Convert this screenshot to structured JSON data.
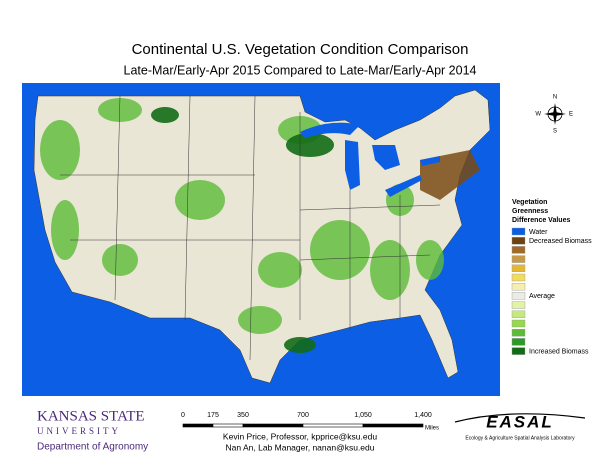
{
  "header": {
    "title": "Continental U.S. Vegetation Condition Comparison",
    "subtitle": "Late-Mar/Early-Apr 2015 Compared to Late-Mar/Early-Apr 2014"
  },
  "compass": {
    "n": "N",
    "s": "S",
    "e": "E",
    "w": "W"
  },
  "legend": {
    "title": [
      "Vegetation",
      "Greenness",
      "Difference Values"
    ],
    "items": [
      {
        "color": "#0a5ee0",
        "label": "Water"
      },
      {
        "color": "#6b4210",
        "label": "Decreased Biomass"
      },
      {
        "color": "#a06a28"
      },
      {
        "color": "#c89a48"
      },
      {
        "color": "#e6b830"
      },
      {
        "color": "#f2dc60"
      },
      {
        "color": "#f6eeb0"
      },
      {
        "color": "#ecebe6",
        "label": "Average"
      },
      {
        "color": "#e2f2a8"
      },
      {
        "color": "#c4ea7c"
      },
      {
        "color": "#96d84e"
      },
      {
        "color": "#5cbc38"
      },
      {
        "color": "#2c9a28"
      },
      {
        "color": "#126c16",
        "label": "Increased Biomass"
      }
    ]
  },
  "scale": {
    "ticks": [
      0,
      175,
      350,
      700,
      {
        "value": 1050,
        "label": "1,050"
      },
      {
        "value": 1400,
        "label": "1,400"
      }
    ],
    "unit": "Miles"
  },
  "logo": {
    "name": "KANSAS STATE",
    "sub": "UNIVERSITY",
    "dept": "Department of Agronomy"
  },
  "credits": [
    "Kevin Price, Professor, kpprice@ksu.edu",
    "Nan An, Lab Manager, nanan@ksu.edu"
  ],
  "lab": {
    "name": "EASAL",
    "full": "Ecology & Agriculture Spatial Analysis Laboratory"
  }
}
